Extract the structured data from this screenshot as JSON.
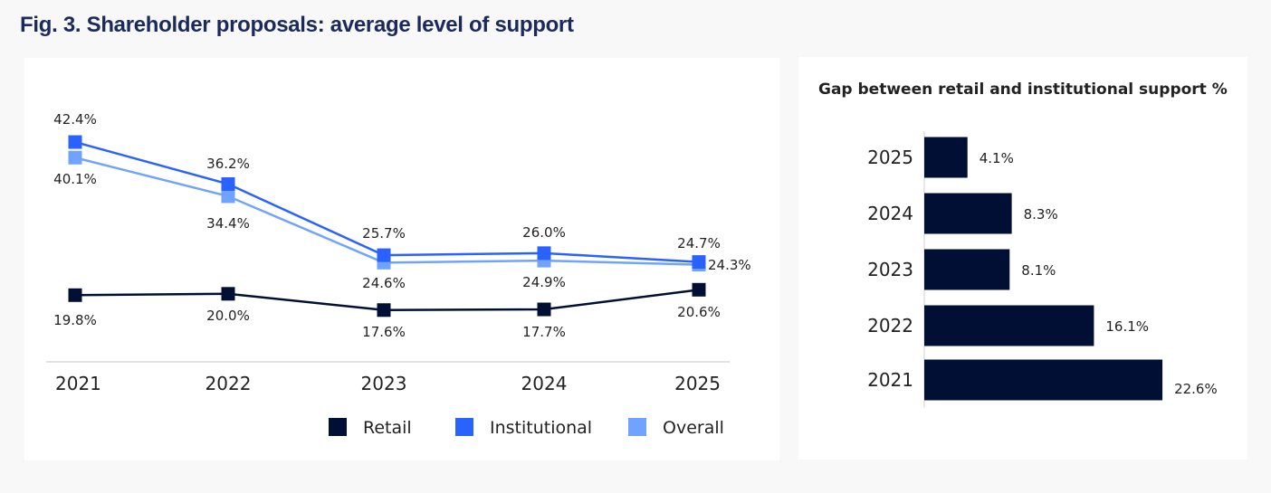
{
  "title": "Fig. 3. Shareholder proposals: average level of support",
  "colors": {
    "retail": "#000f33",
    "institutional": "#2962ff",
    "overall": "#6fa3ff",
    "title": "#1b2a5c",
    "bar": "#000f33"
  },
  "chart_data": [
    {
      "type": "line",
      "title": "",
      "x": [
        "2021",
        "2022",
        "2023",
        "2024",
        "2025"
      ],
      "xlabel": "",
      "ylabel": "",
      "ylim": [
        0,
        45
      ],
      "grid": false,
      "legend": "bottom-right",
      "series": [
        {
          "name": "Retail",
          "key": "retail",
          "values": [
            19.8,
            20.0,
            17.6,
            17.7,
            20.6
          ],
          "labels": [
            "19.8%",
            "20.0%",
            "17.6%",
            "17.7%",
            "20.6%"
          ]
        },
        {
          "name": "Institutional",
          "key": "institutional",
          "values": [
            42.4,
            36.2,
            25.7,
            26.0,
            24.7
          ],
          "labels": [
            "42.4%",
            "36.2%",
            "25.7%",
            "26.0%",
            "24.7%"
          ]
        },
        {
          "name": "Overall",
          "key": "overall",
          "values": [
            40.1,
            34.4,
            24.6,
            24.9,
            24.3
          ],
          "labels": [
            "40.1%",
            "34.4%",
            "24.6%",
            "24.9%",
            "24.3%"
          ]
        }
      ]
    },
    {
      "type": "bar",
      "orientation": "horizontal",
      "title": "Gap between retail and institutional support %",
      "categories": [
        "2025",
        "2024",
        "2023",
        "2022",
        "2021"
      ],
      "values": [
        4.1,
        8.3,
        8.1,
        16.1,
        22.6
      ],
      "labels": [
        "4.1%",
        "8.3%",
        "8.1%",
        "16.1%",
        "22.6%"
      ],
      "xlabel": "",
      "ylabel": "",
      "xlim": [
        0,
        25
      ]
    }
  ]
}
